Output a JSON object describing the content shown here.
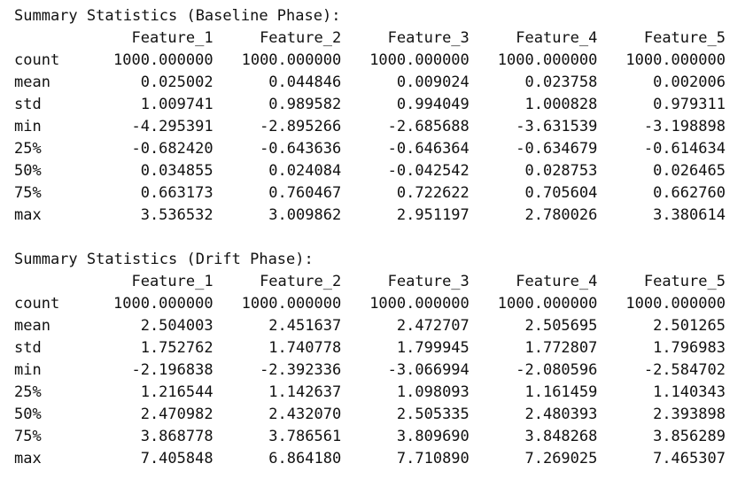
{
  "columns": [
    "Feature_1",
    "Feature_2",
    "Feature_3",
    "Feature_4",
    "Feature_5"
  ],
  "blocks": [
    {
      "title": "Summary Statistics (Baseline Phase):",
      "rows": [
        {
          "label": "count",
          "values": [
            "1000.000000",
            "1000.000000",
            "1000.000000",
            "1000.000000",
            "1000.000000"
          ]
        },
        {
          "label": "mean",
          "values": [
            "0.025002",
            "0.044846",
            "0.009024",
            "0.023758",
            "0.002006"
          ]
        },
        {
          "label": "std",
          "values": [
            "1.009741",
            "0.989582",
            "0.994049",
            "1.000828",
            "0.979311"
          ]
        },
        {
          "label": "min",
          "values": [
            "-4.295391",
            "-2.895266",
            "-2.685688",
            "-3.631539",
            "-3.198898"
          ]
        },
        {
          "label": "25%",
          "values": [
            "-0.682420",
            "-0.643636",
            "-0.646364",
            "-0.634679",
            "-0.614634"
          ]
        },
        {
          "label": "50%",
          "values": [
            "0.034855",
            "0.024084",
            "-0.042542",
            "0.028753",
            "0.026465"
          ]
        },
        {
          "label": "75%",
          "values": [
            "0.663173",
            "0.760467",
            "0.722622",
            "0.705604",
            "0.662760"
          ]
        },
        {
          "label": "max",
          "values": [
            "3.536532",
            "3.009862",
            "2.951197",
            "2.780026",
            "3.380614"
          ]
        }
      ]
    },
    {
      "title": "Summary Statistics (Drift Phase):",
      "rows": [
        {
          "label": "count",
          "values": [
            "1000.000000",
            "1000.000000",
            "1000.000000",
            "1000.000000",
            "1000.000000"
          ]
        },
        {
          "label": "mean",
          "values": [
            "2.504003",
            "2.451637",
            "2.472707",
            "2.505695",
            "2.501265"
          ]
        },
        {
          "label": "std",
          "values": [
            "1.752762",
            "1.740778",
            "1.799945",
            "1.772807",
            "1.796983"
          ]
        },
        {
          "label": "min",
          "values": [
            "-2.196838",
            "-2.392336",
            "-3.066994",
            "-2.080596",
            "-2.584702"
          ]
        },
        {
          "label": "25%",
          "values": [
            "1.216544",
            "1.142637",
            "1.098093",
            "1.161459",
            "1.140343"
          ]
        },
        {
          "label": "50%",
          "values": [
            "2.470982",
            "2.432070",
            "2.505335",
            "2.480393",
            "2.393898"
          ]
        },
        {
          "label": "75%",
          "values": [
            "3.868778",
            "3.786561",
            "3.809690",
            "3.848268",
            "3.856289"
          ]
        },
        {
          "label": "max",
          "values": [
            "7.405848",
            "6.864180",
            "7.710890",
            "7.269025",
            "7.465307"
          ]
        }
      ]
    }
  ]
}
